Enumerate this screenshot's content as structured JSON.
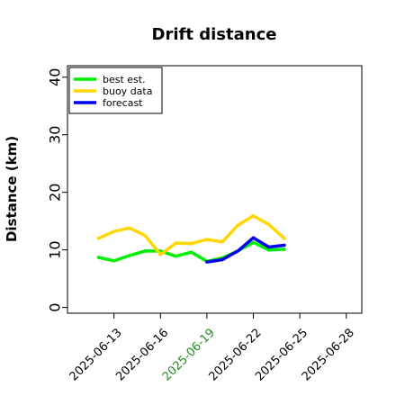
{
  "chart_data": {
    "type": "line",
    "title": "Drift distance",
    "xlabel": "",
    "ylabel": "Distance (km)",
    "ylim": [
      -1,
      42
    ],
    "xlim": [
      "2025-06-10",
      "2025-06-29"
    ],
    "yticks": [
      0,
      10,
      20,
      30,
      40
    ],
    "xticks": [
      "2025-06-13",
      "2025-06-16",
      "2025-06-19",
      "2025-06-22",
      "2025-06-25",
      "2025-06-28"
    ],
    "xtick_colors": [
      "#000000",
      "#000000",
      "#228b22",
      "#000000",
      "#000000",
      "#000000"
    ],
    "grid": false,
    "legend_position": "top-left",
    "series": [
      {
        "name": "best est.",
        "color": "#00ee00",
        "x": [
          "2025-06-12",
          "2025-06-13",
          "2025-06-14",
          "2025-06-15",
          "2025-06-16",
          "2025-06-17",
          "2025-06-18",
          "2025-06-19",
          "2025-06-20",
          "2025-06-21",
          "2025-06-22",
          "2025-06-23",
          "2025-06-24"
        ],
        "values": [
          8.7,
          8.1,
          9.0,
          9.8,
          9.8,
          8.9,
          9.6,
          8.0,
          8.6,
          9.8,
          11.3,
          10.0,
          10.1
        ]
      },
      {
        "name": "buoy data",
        "color": "#ffd700",
        "x": [
          "2025-06-12",
          "2025-06-13",
          "2025-06-14",
          "2025-06-15",
          "2025-06-16",
          "2025-06-17",
          "2025-06-18",
          "2025-06-19",
          "2025-06-20",
          "2025-06-21",
          "2025-06-22",
          "2025-06-23",
          "2025-06-24"
        ],
        "values": [
          12.0,
          13.2,
          13.8,
          12.5,
          9.2,
          11.2,
          11.1,
          11.8,
          11.4,
          14.3,
          15.9,
          14.4,
          12.0
        ]
      },
      {
        "name": "forecast",
        "color": "#0000ee",
        "x": [
          "2025-06-19",
          "2025-06-20",
          "2025-06-21",
          "2025-06-22",
          "2025-06-23",
          "2025-06-24"
        ],
        "values": [
          7.9,
          8.3,
          9.8,
          12.1,
          10.5,
          10.8
        ]
      }
    ]
  }
}
